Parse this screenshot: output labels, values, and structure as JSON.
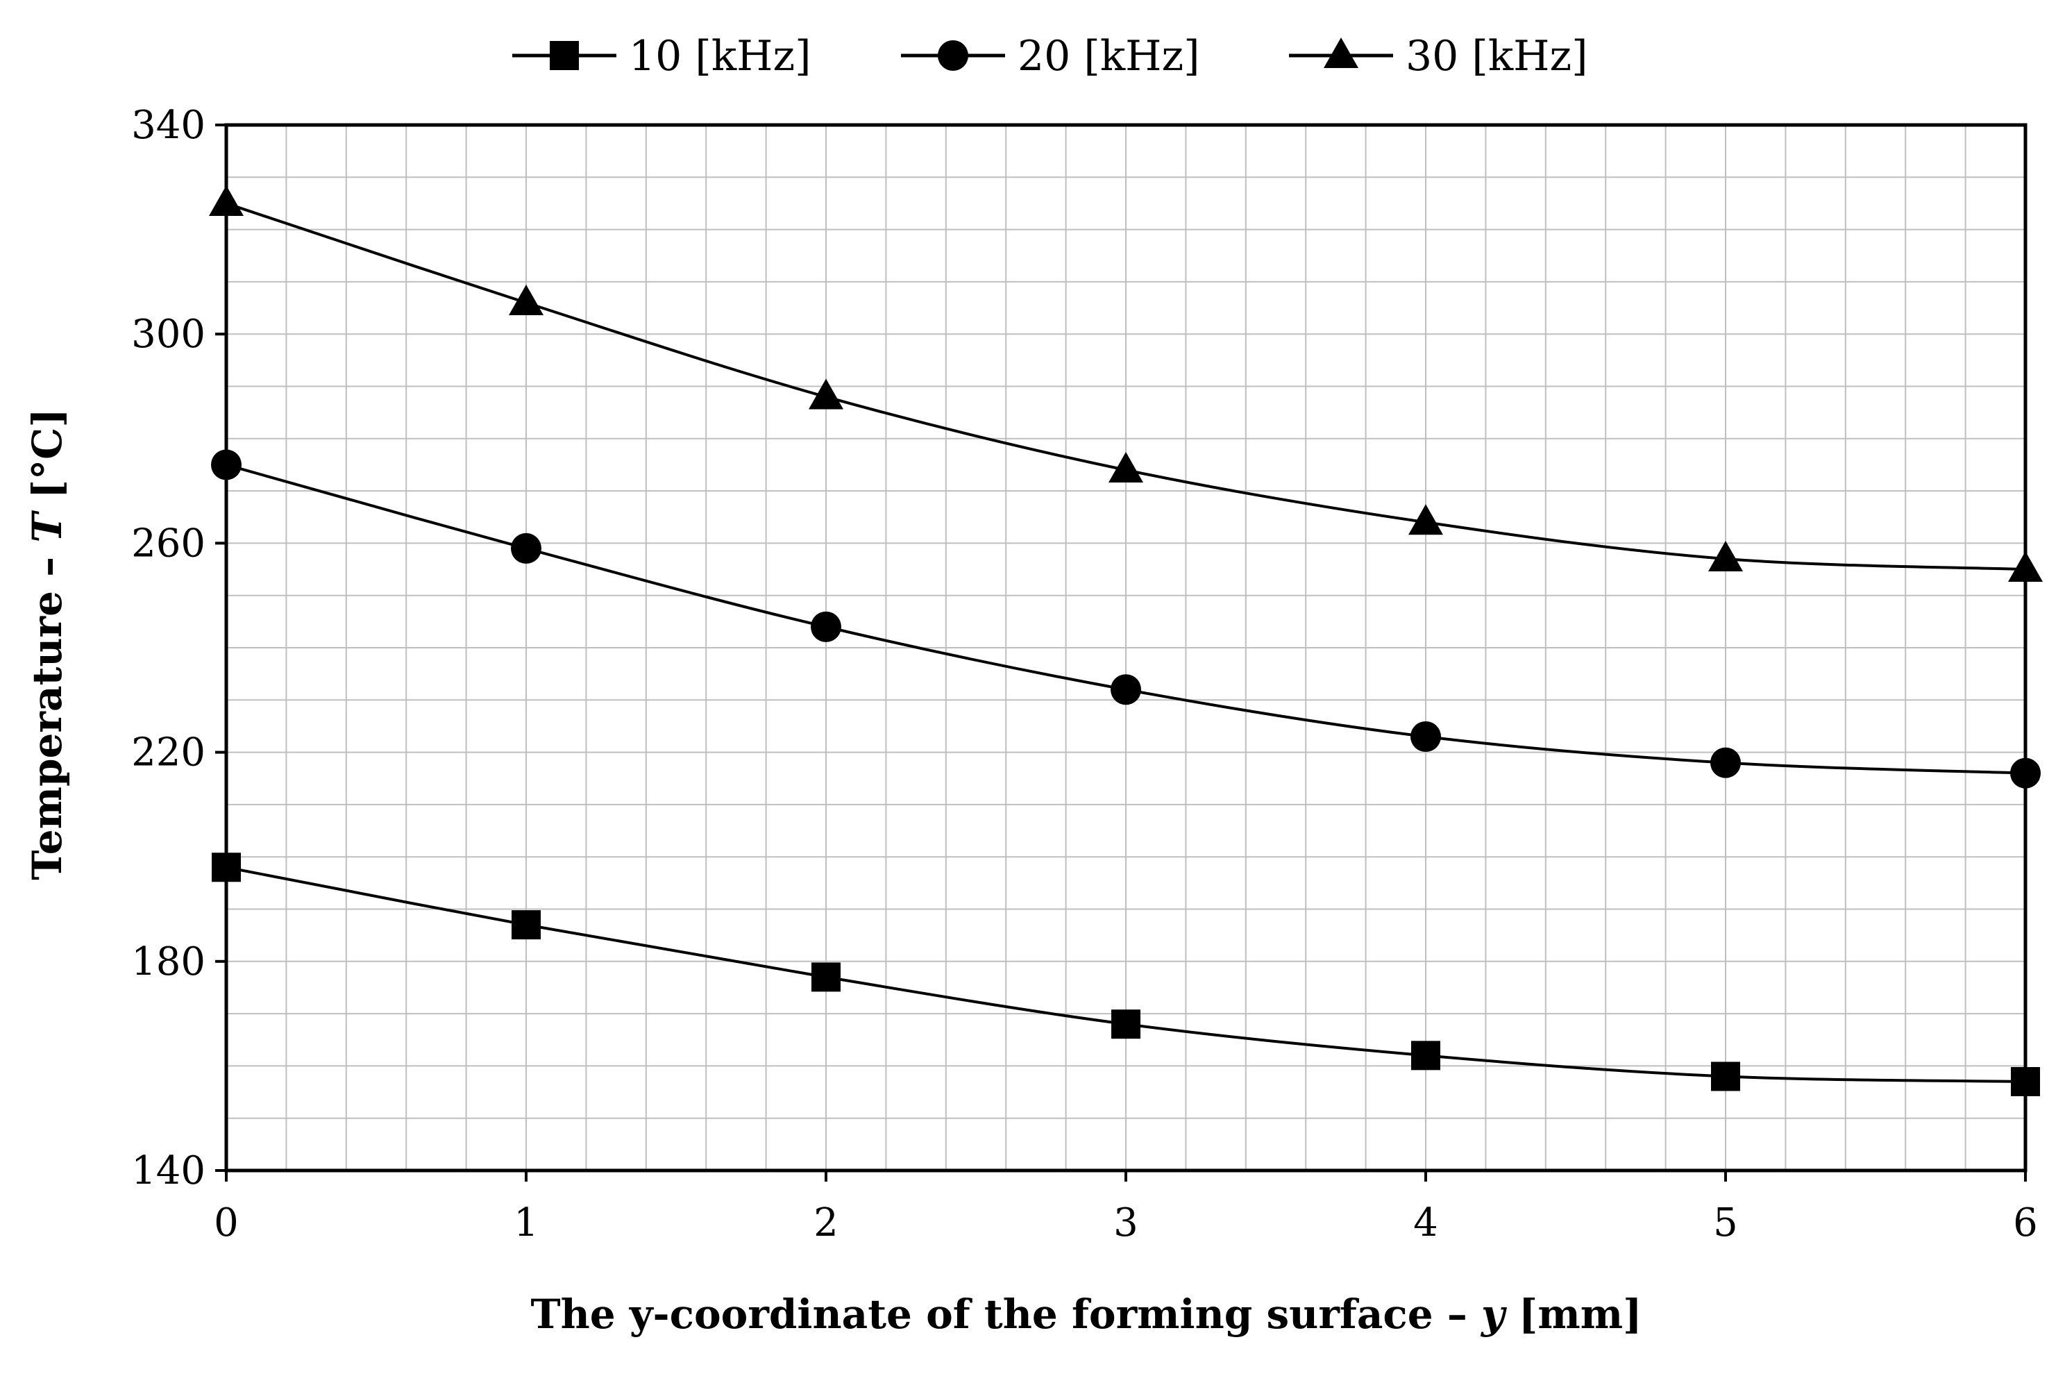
{
  "chart_data": {
    "type": "line",
    "title": "",
    "xlabel": {
      "main": "The y-coordinate of the forming surface – ",
      "symbol": "y",
      "unit": " [mm]"
    },
    "ylabel": {
      "main": "Temperature – ",
      "symbol": "T",
      "unit": " [°C]"
    },
    "xlim": [
      0,
      6
    ],
    "ylim": [
      140,
      340
    ],
    "xticks": [
      0,
      1,
      2,
      3,
      4,
      5,
      6
    ],
    "yticks": [
      140,
      180,
      220,
      260,
      300,
      340
    ],
    "grid": true,
    "legend_position": "top",
    "series": [
      {
        "name": "10 [kHz]",
        "marker": "square",
        "x": [
          0,
          1,
          2,
          3,
          4,
          5,
          6
        ],
        "values": [
          198,
          187,
          177,
          168,
          162,
          158,
          157
        ]
      },
      {
        "name": "20 [kHz]",
        "marker": "circle",
        "x": [
          0,
          1,
          2,
          3,
          4,
          5,
          6
        ],
        "values": [
          275,
          259,
          244,
          232,
          223,
          218,
          216
        ]
      },
      {
        "name": "30 [kHz]",
        "marker": "triangle",
        "x": [
          0,
          1,
          2,
          3,
          4,
          5,
          6
        ],
        "values": [
          325,
          306,
          288,
          274,
          264,
          257,
          255
        ]
      }
    ],
    "colors": {
      "line": "#000000",
      "grid": "#bfbfbf",
      "axis": "#000000"
    }
  }
}
